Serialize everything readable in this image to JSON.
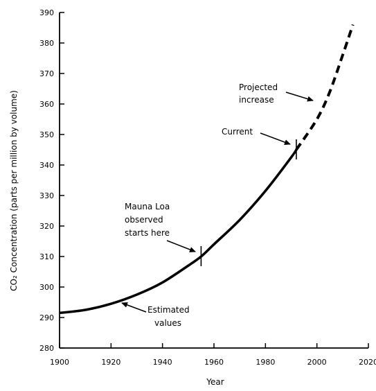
{
  "chart_data": {
    "type": "line",
    "title": "",
    "xlabel": "Year",
    "ylabel": "CO₂ Concentration (parts per million by volume)",
    "xlim": [
      1900,
      2020
    ],
    "ylim": [
      280,
      390
    ],
    "x_ticks": [
      "1900",
      "1920",
      "1940",
      "1960",
      "1980",
      "2000",
      "2020"
    ],
    "y_ticks": [
      "280",
      "290",
      "300",
      "310",
      "320",
      "330",
      "340",
      "350",
      "360",
      "370",
      "380",
      "390"
    ],
    "grid": false,
    "series": [
      {
        "style": "solid",
        "x": [
          1900,
          1910,
          1920,
          1930,
          1940,
          1950,
          1955,
          1960,
          1970,
          1980,
          1990,
          1992
        ],
        "y": [
          291.5,
          292.5,
          294.5,
          297.5,
          301.5,
          307,
          310,
          314,
          322,
          331.5,
          342.5,
          345
        ]
      },
      {
        "style": "dashed",
        "x": [
          1992,
          2000,
          2005,
          2010,
          2014
        ],
        "y": [
          345,
          355,
          364,
          376,
          386
        ]
      }
    ],
    "markers": [
      {
        "x": 1955,
        "y": 310
      },
      {
        "x": 1992,
        "y": 345
      }
    ],
    "annotations": [
      {
        "key": "mauna",
        "lines": [
          "Mauna Loa",
          "observed",
          "starts here"
        ]
      },
      {
        "key": "estimated",
        "lines": [
          "Estimated",
          "values"
        ]
      },
      {
        "key": "current",
        "lines": [
          "Current"
        ]
      },
      {
        "key": "projected",
        "lines": [
          "Projected",
          "increase"
        ]
      }
    ]
  }
}
